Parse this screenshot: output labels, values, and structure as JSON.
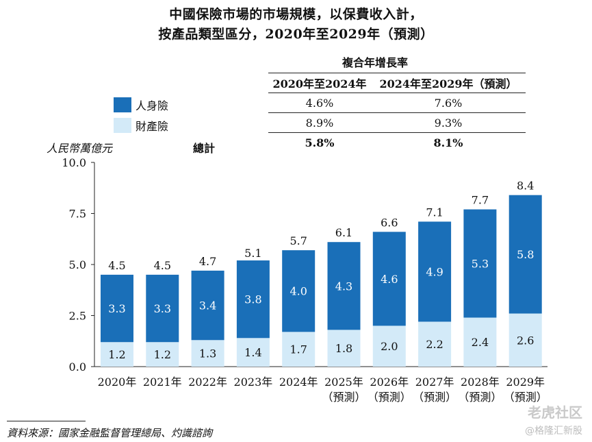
{
  "title_line1": "中國保險市場的市場規模，以保費收入計，",
  "title_line2": "按產品類型區分，2020年至2029年（預測）",
  "legend": [
    {
      "label": "人身險",
      "color": "#1a6fb8"
    },
    {
      "label": "財產險",
      "color": "#d3eaf8"
    }
  ],
  "cagr": {
    "header": "複合年增長率",
    "columns": [
      "2020年至2024年",
      "2024年至2029年（預測）"
    ],
    "rows": [
      {
        "values": [
          "4.6%",
          "7.6%"
        ]
      },
      {
        "values": [
          "8.9%",
          "9.3%"
        ]
      },
      {
        "label": "總計",
        "values": [
          "5.8%",
          "8.1%"
        ]
      }
    ]
  },
  "unit": "人民幣萬億元",
  "source": "資料來源：國家金融監督管理總局、灼識諮詢",
  "watermark": {
    "main": "老虎社区",
    "sub": "@格隆汇新股"
  },
  "chart_data": {
    "type": "bar",
    "stacked": true,
    "ylim": [
      0,
      10
    ],
    "yticks": [
      "0.0",
      "2.5",
      "5.0",
      "7.5",
      "10.0"
    ],
    "ylabel": "人民幣萬億元",
    "categories": [
      [
        "2020年"
      ],
      [
        "2021年"
      ],
      [
        "2022年"
      ],
      [
        "2023年"
      ],
      [
        "2024年"
      ],
      [
        "2025年",
        "（預測）"
      ],
      [
        "2026年",
        "（預測）"
      ],
      [
        "2027年",
        "（預測）"
      ],
      [
        "2028年",
        "（預測）"
      ],
      [
        "2029年",
        "（預測）"
      ]
    ],
    "series": [
      {
        "name": "財產險",
        "color": "#d3eaf8",
        "label_color": "#111111",
        "values": [
          1.2,
          1.2,
          1.3,
          1.4,
          1.7,
          1.8,
          2.0,
          2.2,
          2.4,
          2.6
        ]
      },
      {
        "name": "人身險",
        "color": "#1a6fb8",
        "label_color": "#ffffff",
        "values": [
          3.3,
          3.3,
          3.4,
          3.8,
          4.0,
          4.3,
          4.6,
          4.9,
          5.3,
          5.8
        ]
      }
    ],
    "totals": [
      4.5,
      4.5,
      4.7,
      5.1,
      5.7,
      6.1,
      6.6,
      7.1,
      7.7,
      8.4
    ]
  }
}
